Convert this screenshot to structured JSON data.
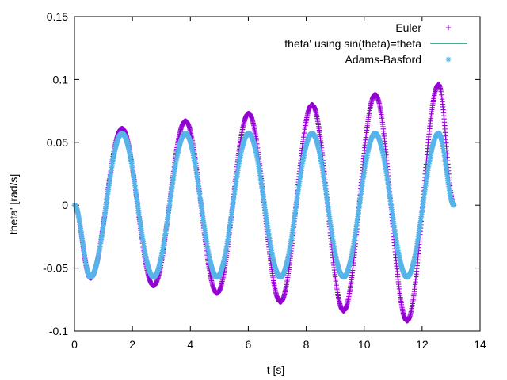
{
  "chart_data": {
    "type": "line",
    "title": "",
    "xlabel": "t [s]",
    "ylabel": "theta' [rad/s]",
    "xlim": [
      0,
      14
    ],
    "ylim": [
      -0.1,
      0.15
    ],
    "x_ticks": [
      "0",
      "2",
      "4",
      "6",
      "8",
      "10",
      "12",
      "14"
    ],
    "y_ticks": [
      "-0.1",
      "-0.05",
      "0",
      "0.05",
      "0.1",
      "0.15"
    ],
    "grid": false,
    "legend_position": "top-right",
    "series": [
      {
        "name": "Euler",
        "marker": "plus",
        "color": "#9400d3",
        "x": [
          0,
          0.55,
          1.64,
          2.73,
          3.83,
          4.92,
          6.01,
          7.11,
          8.2,
          9.29,
          10.38,
          11.48,
          12.57,
          13.1
        ],
        "values": [
          0,
          -0.058,
          0.061,
          -0.064,
          0.067,
          -0.07,
          0.073,
          -0.077,
          0.08,
          -0.084,
          0.088,
          -0.092,
          0.096,
          0
        ]
      },
      {
        "name": "theta' using sin(theta)=theta",
        "marker": "line",
        "color": "#009e73",
        "x": [
          0,
          0.55,
          1.64,
          2.73,
          3.83,
          4.92,
          6.01,
          7.11,
          8.2,
          9.29,
          10.38,
          11.48,
          12.57,
          13.1
        ],
        "values": [
          0,
          -0.057,
          0.057,
          -0.057,
          0.057,
          -0.057,
          0.057,
          -0.057,
          0.057,
          -0.057,
          0.057,
          -0.057,
          0.057,
          0
        ]
      },
      {
        "name": "Adams-Basford",
        "marker": "star",
        "color": "#56b4e9",
        "x": [
          0,
          0.55,
          1.64,
          2.73,
          3.83,
          4.92,
          6.01,
          7.11,
          8.2,
          9.29,
          10.38,
          11.48,
          12.57,
          13.1
        ],
        "values": [
          0,
          -0.057,
          0.057,
          -0.057,
          0.057,
          -0.057,
          0.057,
          -0.057,
          0.057,
          -0.057,
          0.057,
          -0.057,
          0.057,
          0
        ]
      }
    ]
  }
}
